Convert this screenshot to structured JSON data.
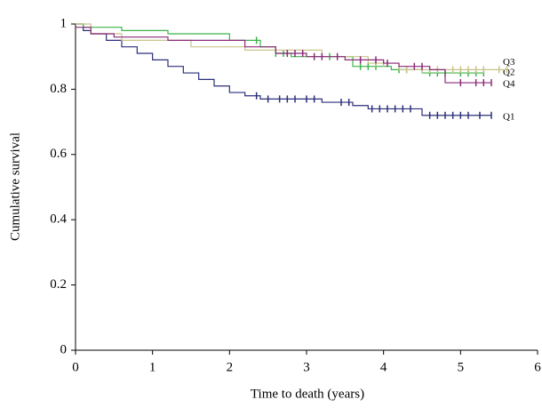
{
  "chart_data": {
    "type": "step",
    "x_label": "Time to death (years)",
    "y_label": "Cumulative survival",
    "xlim": [
      0,
      6
    ],
    "xticks": [
      0,
      1,
      2,
      3,
      4,
      5,
      6
    ],
    "ylim": [
      0,
      1
    ],
    "yticks": [
      0,
      0.2,
      0.4,
      0.6,
      0.8,
      1
    ],
    "series": [
      {
        "name": "Q1",
        "color": "#2b2f7a",
        "x": [
          0,
          0.1,
          0.2,
          0.4,
          0.6,
          0.8,
          1.0,
          1.2,
          1.4,
          1.6,
          1.8,
          2.0,
          2.2,
          2.4,
          3.2,
          3.6,
          3.8,
          4.5,
          5.4
        ],
        "values": [
          1,
          0.98,
          0.97,
          0.95,
          0.93,
          0.91,
          0.89,
          0.87,
          0.85,
          0.83,
          0.81,
          0.79,
          0.78,
          0.77,
          0.76,
          0.75,
          0.74,
          0.72,
          0.72
        ],
        "censored": [
          2.35,
          2.5,
          2.65,
          2.75,
          2.85,
          3.0,
          3.1,
          3.45,
          3.55,
          3.85,
          3.95,
          4.05,
          4.15,
          4.25,
          4.35,
          4.6,
          4.7,
          4.8,
          4.9,
          5.0,
          5.1,
          5.25,
          5.4
        ]
      },
      {
        "name": "Q2",
        "color": "#3db34a",
        "x": [
          0,
          0.1,
          0.6,
          1.2,
          2.0,
          2.4,
          2.6,
          2.8,
          3.6,
          4.1,
          4.5,
          5.3
        ],
        "values": [
          1,
          0.99,
          0.98,
          0.97,
          0.95,
          0.93,
          0.91,
          0.9,
          0.87,
          0.86,
          0.85,
          0.85
        ],
        "censored": [
          2.35,
          2.6,
          2.7,
          3.3,
          3.7,
          3.8,
          3.9,
          4.2,
          4.3,
          4.6,
          4.7,
          4.8,
          5.0,
          5.1,
          5.2,
          5.3
        ]
      },
      {
        "name": "Q3",
        "color": "#c9c48a",
        "x": [
          0,
          0.2,
          0.6,
          1.5,
          2.2,
          3.2,
          3.8,
          4.2,
          5.6
        ],
        "values": [
          1,
          0.97,
          0.95,
          0.93,
          0.92,
          0.9,
          0.88,
          0.86,
          0.86
        ],
        "censored": [
          3.9,
          4.0,
          4.3,
          4.5,
          4.6,
          4.7,
          4.9,
          5.0,
          5.1,
          5.2,
          5.3,
          5.5,
          5.6
        ]
      },
      {
        "name": "Q4",
        "color": "#8b2a7a",
        "x": [
          0,
          0.2,
          0.5,
          1.2,
          2.2,
          2.6,
          3.0,
          3.5,
          4.0,
          4.2,
          4.6,
          4.8,
          5.4
        ],
        "values": [
          0.99,
          0.97,
          0.96,
          0.95,
          0.93,
          0.91,
          0.9,
          0.89,
          0.88,
          0.87,
          0.86,
          0.82,
          0.82
        ],
        "censored": [
          2.75,
          2.85,
          2.95,
          3.1,
          3.2,
          3.4,
          3.7,
          3.9,
          4.05,
          4.4,
          4.5,
          5.0,
          5.2,
          5.3,
          5.4
        ]
      }
    ]
  }
}
